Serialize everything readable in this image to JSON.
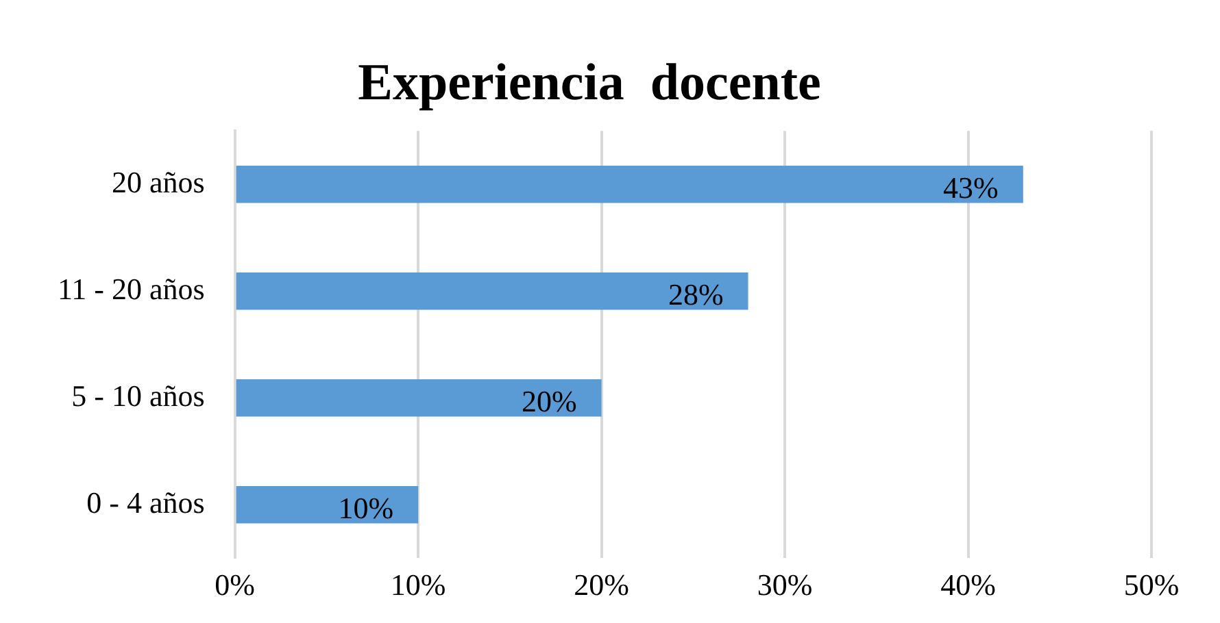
{
  "chart_data": {
    "type": "bar",
    "orientation": "horizontal",
    "title": "Experiencia  docente",
    "categories": [
      "20 años",
      "11 - 20 años",
      "5 - 10 años",
      "0 - 4 años"
    ],
    "values": [
      43,
      28,
      20,
      10
    ],
    "color": "#5b9bd5",
    "value_labels": [
      "43%",
      "28%",
      "20%",
      "10%"
    ],
    "xlim": [
      0,
      50
    ],
    "xticks": [
      {
        "value": 0,
        "label": "0%"
      },
      {
        "value": 10,
        "label": "10%"
      },
      {
        "value": 20,
        "label": "20%"
      },
      {
        "value": 30,
        "label": "30%"
      },
      {
        "value": 40,
        "label": "40%"
      },
      {
        "value": 50,
        "label": "50%"
      }
    ],
    "grid": "x",
    "legend": false
  }
}
